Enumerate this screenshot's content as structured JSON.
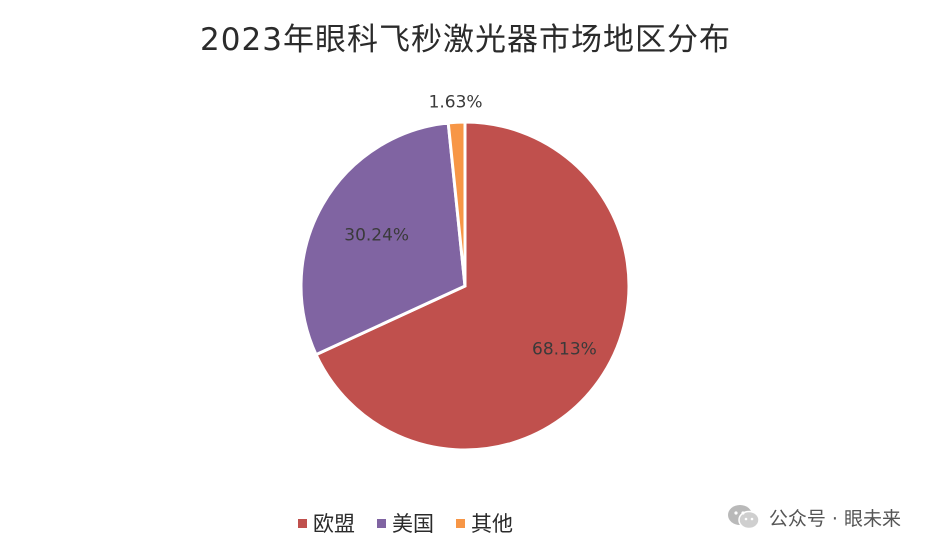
{
  "title": "2023年眼科飞秒激光器市场地区分布",
  "chart_data": {
    "type": "pie",
    "title": "2023年眼科飞秒激光器市场地区分布",
    "slices": [
      {
        "name": "欧盟",
        "value": 68.13,
        "label": "68.13%",
        "color": "#c0504d"
      },
      {
        "name": "美国",
        "value": 30.24,
        "label": "30.24%",
        "color": "#8064a2"
      },
      {
        "name": "其他",
        "value": 1.63,
        "label": "1.63%",
        "color": "#f79646"
      }
    ],
    "legend_position": "bottom"
  },
  "legend": {
    "items": [
      {
        "label": "欧盟",
        "color": "#c0504d"
      },
      {
        "label": "美国",
        "color": "#8064a2"
      },
      {
        "label": "其他",
        "color": "#f79646"
      }
    ]
  },
  "watermark": {
    "text": "公众号 · 眼未来",
    "icon": "wechat-icon"
  }
}
